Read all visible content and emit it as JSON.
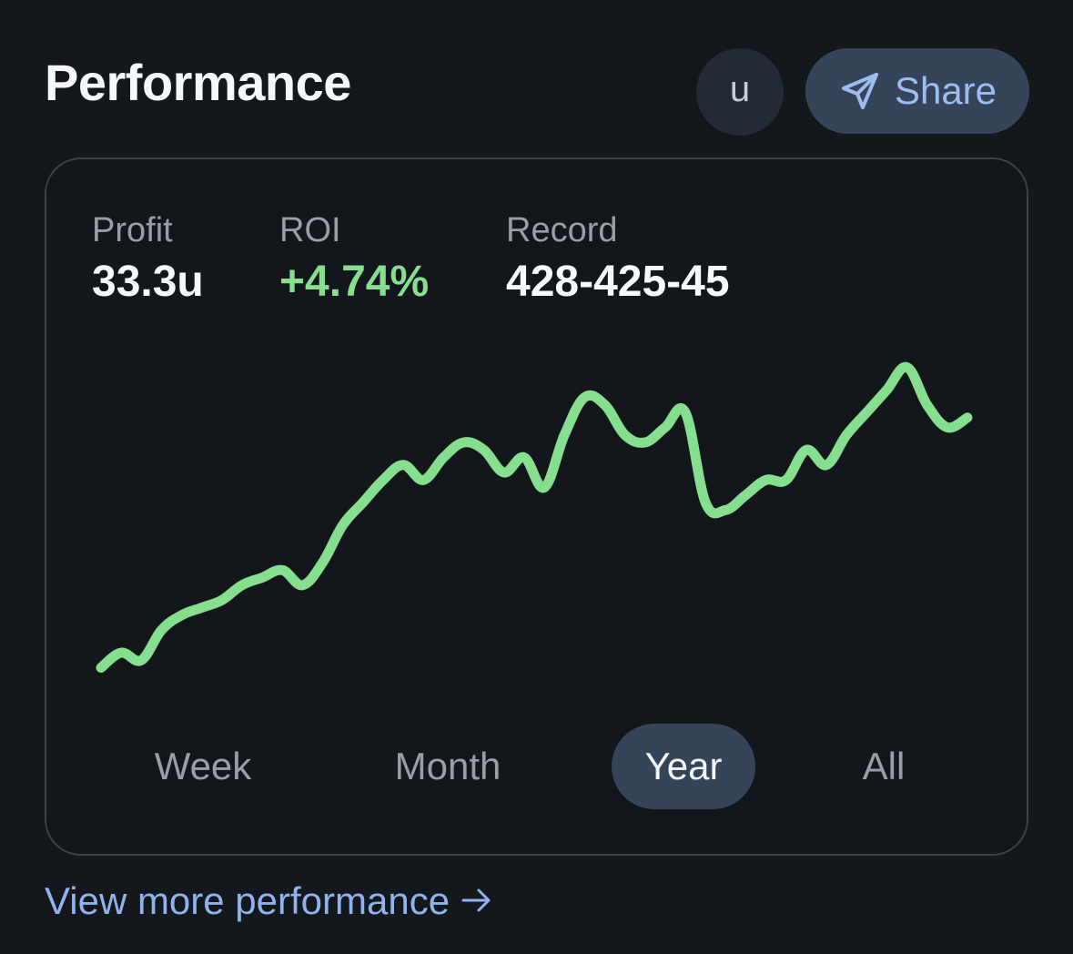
{
  "header": {
    "title": "Performance",
    "unit_button": "u",
    "share_label": "Share"
  },
  "stats": {
    "profit": {
      "label": "Profit",
      "value": "33.3u"
    },
    "roi": {
      "label": "ROI",
      "value": "+4.74%"
    },
    "record": {
      "label": "Record",
      "value": "428-425-45"
    }
  },
  "colors": {
    "line": "#86df8f",
    "accent": "#8fb3ee",
    "active_tab": "#36445a"
  },
  "chart_data": {
    "type": "line",
    "title": "",
    "xlabel": "",
    "ylabel": "",
    "series": [
      {
        "name": "Profit (u)",
        "values": [
          0,
          2,
          1,
          5,
          7,
          8,
          9,
          11,
          12,
          13,
          11,
          14,
          19,
          22,
          25,
          27,
          25,
          28,
          30,
          29,
          26,
          28,
          24,
          31,
          36,
          35,
          31,
          30,
          32,
          34,
          22,
          21,
          23,
          25,
          25,
          29,
          27,
          31,
          34,
          37,
          40,
          35,
          32,
          33.3
        ]
      }
    ],
    "ylim": [
      -2,
      42
    ],
    "grid": false
  },
  "ranges": {
    "tabs": [
      "Week",
      "Month",
      "Year",
      "All"
    ],
    "active": "Year"
  },
  "footer": {
    "more_label": "View more performance"
  }
}
